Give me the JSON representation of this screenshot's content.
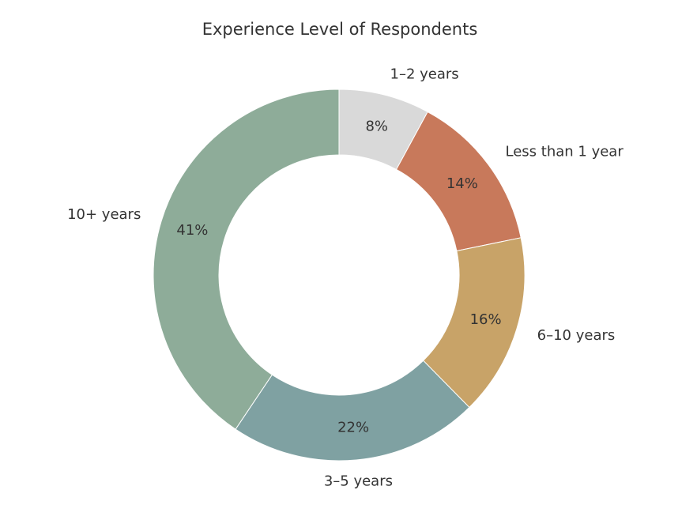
{
  "chart_data": {
    "type": "pie",
    "donut": true,
    "title": "Experience Level of Respondents",
    "slices": [
      {
        "label": "1–2 years",
        "value": 8,
        "pct_text": "8%",
        "color": "#d9d9d9"
      },
      {
        "label": "Less than 1 year",
        "value": 14,
        "pct_text": "14%",
        "color": "#c8795b"
      },
      {
        "label": "6–10 years",
        "value": 16,
        "pct_text": "16%",
        "color": "#c8a368"
      },
      {
        "label": "3–5 years",
        "value": 22,
        "pct_text": "22%",
        "color": "#7fa1a2"
      },
      {
        "label": "10+ years",
        "value": 41,
        "pct_text": "41%",
        "color": "#8eac99"
      }
    ],
    "start_angle": "top",
    "direction": "clockwise"
  }
}
